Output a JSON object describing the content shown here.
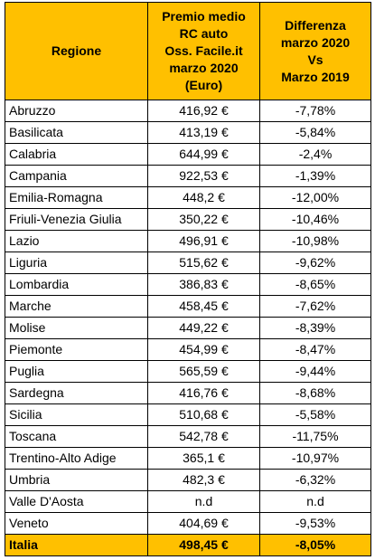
{
  "table": {
    "header": [
      [
        "Regione"
      ],
      [
        "Premio medio",
        "RC auto",
        "Oss. Facile.it",
        "marzo 2020",
        "(Euro)"
      ],
      [
        "Differenza",
        "marzo 2020",
        "Vs",
        "Marzo 2019"
      ]
    ],
    "rows": [
      [
        "Abruzzo",
        "416,92 €",
        "-7,78%"
      ],
      [
        "Basilicata",
        "413,19 €",
        "-5,84%"
      ],
      [
        "Calabria",
        "644,99 €",
        "-2,4%"
      ],
      [
        "Campania",
        "922,53 €",
        "-1,39%"
      ],
      [
        "Emilia-Romagna",
        "448,2 €",
        "-12,00%"
      ],
      [
        "Friuli-Venezia Giulia",
        "350,22 €",
        "-10,46%"
      ],
      [
        "Lazio",
        "496,91 €",
        "-10,98%"
      ],
      [
        "Liguria",
        "515,62 €",
        "-9,62%"
      ],
      [
        "Lombardia",
        "386,83 €",
        "-8,65%"
      ],
      [
        "Marche",
        "458,45 €",
        "-7,62%"
      ],
      [
        "Molise",
        "449,22 €",
        "-8,39%"
      ],
      [
        "Piemonte",
        "454,99 €",
        "-8,47%"
      ],
      [
        "Puglia",
        "565,59 €",
        "-9,44%"
      ],
      [
        "Sardegna",
        "416,76 €",
        "-8,68%"
      ],
      [
        "Sicilia",
        "510,68 €",
        "-5,58%"
      ],
      [
        "Toscana",
        "542,78 €",
        "-11,75%"
      ],
      [
        "Trentino-Alto Adige",
        "365,1 €",
        "-10,97%"
      ],
      [
        "Umbria",
        "482,3 €",
        "-6,32%"
      ],
      [
        "Valle D'Aosta",
        "n.d",
        "n.d"
      ],
      [
        "Veneto",
        "404,69 €",
        "-9,53%"
      ]
    ],
    "total": [
      "Italia",
      "498,45 €",
      "-8,05%"
    ]
  }
}
